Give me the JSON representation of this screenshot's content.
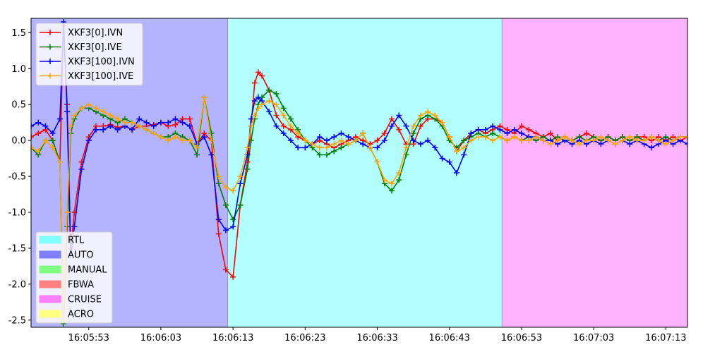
{
  "chart_data": {
    "type": "line",
    "title": "",
    "xlabel": "",
    "ylabel": "",
    "ylim": [
      -2.6,
      1.7
    ],
    "xlim": [
      "16:05:45",
      "16:07:16"
    ],
    "grid": false,
    "x_tick_labels": [
      "16:05:53",
      "16:06:03",
      "16:06:13",
      "16:06:23",
      "16:06:33",
      "16:06:43",
      "16:06:53",
      "16:07:03",
      "16:07:13"
    ],
    "x_tick_times": [
      "16:05:53",
      "16:06:03",
      "16:06:13",
      "16:06:23",
      "16:06:33",
      "16:06:43",
      "16:06:53",
      "16:07:03",
      "16:07:13"
    ],
    "y_tick_labels": [
      "1.5",
      "1.0",
      "0.5",
      "0.0",
      "-0.5",
      "-1.0",
      "-1.5",
      "-2.0",
      "-2.5"
    ],
    "y_tick_values": [
      1.5,
      1.0,
      0.5,
      0.0,
      -0.5,
      -1.0,
      -1.5,
      -2.0,
      -2.5
    ],
    "mode_regions": [
      {
        "mode": "AUTO",
        "start": "16:05:45",
        "end": "16:06:12.3",
        "color": "#b3b3ff"
      },
      {
        "mode": "RTL",
        "start": "16:06:12.3",
        "end": "16:06:50.3",
        "color": "#b3ffff"
      },
      {
        "mode": "CRUISE",
        "start": "16:06:50.3",
        "end": "16:07:16",
        "color": "#ffb3ff"
      }
    ],
    "legend_series_placement": "upper-left",
    "legend_modes_placement": "lower-left",
    "series": [
      {
        "name": "XKF3[0].IVN",
        "color": "#ff0000",
        "t": [
          45,
          46,
          47,
          48,
          49,
          49.5,
          50,
          50.5,
          51,
          52,
          53,
          54,
          55,
          56,
          57,
          58,
          59,
          60,
          61,
          62,
          63,
          64,
          65,
          66,
          67,
          68,
          69,
          70,
          71,
          72,
          73,
          74,
          75,
          75.5,
          76,
          76.5,
          77,
          78,
          79,
          80,
          81,
          82,
          83,
          84,
          85,
          86,
          87,
          88,
          89,
          90,
          91,
          92,
          93,
          94,
          95,
          96,
          97,
          98,
          99,
          100,
          101,
          102,
          103,
          104,
          105,
          106,
          107,
          108,
          109,
          110,
          111,
          112,
          113,
          114,
          115,
          116,
          117,
          118,
          119,
          120,
          121,
          122,
          123,
          124,
          125,
          126,
          127,
          128,
          129,
          130,
          131,
          132,
          133,
          134,
          135,
          136
        ],
        "y": [
          0.05,
          0.1,
          0.15,
          0.0,
          -0.3,
          1.6,
          0.5,
          -1.5,
          -1.0,
          -0.3,
          0.05,
          0.2,
          0.2,
          0.22,
          0.18,
          0.2,
          0.15,
          0.2,
          0.2,
          0.22,
          0.25,
          0.2,
          0.22,
          0.3,
          0.3,
          -0.05,
          0.1,
          0.0,
          -1.3,
          -1.8,
          -1.9,
          -0.9,
          -0.3,
          0.2,
          0.8,
          0.95,
          0.9,
          0.7,
          0.35,
          0.2,
          0.15,
          0.05,
          0.0,
          -0.05,
          0.0,
          -0.05,
          -0.1,
          -0.05,
          0.0,
          0.05,
          0.0,
          -0.05,
          0.0,
          0.1,
          0.3,
          0.15,
          -0.05,
          -0.05,
          0.2,
          0.3,
          0.3,
          0.25,
          0.05,
          -0.15,
          0.0,
          0.1,
          0.15,
          0.1,
          0.15,
          0.2,
          0.15,
          0.1,
          0.2,
          0.15,
          0.1,
          0.05,
          0.1,
          0.0,
          0.05,
          0.0,
          0.05,
          0.1,
          0.05,
          0.0,
          0.05,
          0.0,
          0.05,
          0.0,
          0.05,
          0.05,
          0.0,
          0.05,
          0.0,
          0.05,
          0.0,
          0.05
        ]
      },
      {
        "name": "XKF3[0].IVE",
        "color": "#008000",
        "t": [
          45,
          46,
          47,
          48,
          49,
          49.5,
          50,
          50.5,
          51,
          52,
          53,
          54,
          55,
          56,
          57,
          58,
          59,
          60,
          61,
          62,
          63,
          64,
          65,
          66,
          67,
          68,
          69,
          70,
          71,
          72,
          73,
          74,
          75,
          75.5,
          76,
          76.5,
          77,
          78,
          79,
          80,
          81,
          82,
          83,
          84,
          85,
          86,
          87,
          88,
          89,
          90,
          91,
          92,
          93,
          94,
          95,
          96,
          97,
          98,
          99,
          100,
          101,
          102,
          103,
          104,
          105,
          106,
          107,
          108,
          109,
          110,
          111,
          112,
          113,
          114,
          115,
          116,
          117,
          118,
          119,
          120,
          121,
          122,
          123,
          124,
          125,
          126,
          127,
          128,
          129,
          130,
          131,
          132,
          133,
          134,
          135,
          136
        ],
        "y": [
          -0.1,
          -0.2,
          0.0,
          0.0,
          -0.3,
          -2.55,
          -1.2,
          0.1,
          0.3,
          0.45,
          0.45,
          0.4,
          0.35,
          0.3,
          0.25,
          0.3,
          0.25,
          0.2,
          0.15,
          0.1,
          0.05,
          0.05,
          0.1,
          0.05,
          0.0,
          -0.2,
          0.6,
          0.1,
          -0.6,
          -0.9,
          -1.1,
          -0.9,
          -0.4,
          0.0,
          0.3,
          0.5,
          0.6,
          0.7,
          0.65,
          0.45,
          0.3,
          0.15,
          0.0,
          -0.1,
          -0.2,
          -0.2,
          -0.15,
          -0.1,
          -0.05,
          0.0,
          0.1,
          -0.1,
          -0.3,
          -0.6,
          -0.7,
          -0.55,
          -0.2,
          0.1,
          0.3,
          0.35,
          0.3,
          0.2,
          0.0,
          -0.1,
          0.0,
          0.05,
          0.1,
          0.05,
          0.1,
          0.05,
          0.0,
          0.05,
          0.0,
          0.05,
          0.0,
          0.05,
          0.0,
          0.05,
          0.0,
          0.0,
          0.05,
          0.0,
          0.05,
          0.0,
          0.05,
          0.0,
          0.05,
          0.0,
          0.05,
          0.0,
          0.05,
          0.0,
          0.05,
          0.0,
          0.05,
          0.05
        ]
      },
      {
        "name": "XKF3[100].IVN",
        "color": "#0000ff",
        "t": [
          45,
          46,
          47,
          48,
          49,
          49.5,
          50,
          50.5,
          51,
          52,
          53,
          54,
          55,
          56,
          57,
          58,
          59,
          60,
          61,
          62,
          63,
          64,
          65,
          66,
          67,
          68,
          69,
          70,
          71,
          72,
          73,
          74,
          75,
          75.5,
          76,
          76.5,
          77,
          78,
          79,
          80,
          81,
          82,
          83,
          84,
          85,
          86,
          87,
          88,
          89,
          90,
          91,
          92,
          93,
          94,
          95,
          96,
          97,
          98,
          99,
          100,
          101,
          102,
          103,
          104,
          105,
          106,
          107,
          108,
          109,
          110,
          111,
          112,
          113,
          114,
          115,
          116,
          117,
          118,
          119,
          120,
          121,
          122,
          123,
          124,
          125,
          126,
          127,
          128,
          129,
          130,
          131,
          132,
          133,
          134,
          135,
          136
        ],
        "y": [
          0.2,
          0.25,
          0.2,
          0.1,
          0.3,
          1.65,
          0.4,
          -1.6,
          -1.2,
          -0.4,
          0.0,
          0.15,
          0.15,
          0.2,
          0.15,
          0.2,
          0.15,
          0.3,
          0.25,
          0.2,
          0.25,
          0.25,
          0.3,
          0.25,
          0.2,
          -0.05,
          0.05,
          -0.2,
          -1.1,
          -1.25,
          -1.2,
          -0.6,
          -0.2,
          0.3,
          0.55,
          0.6,
          0.55,
          0.4,
          0.2,
          0.1,
          0.0,
          -0.1,
          -0.1,
          -0.05,
          0.05,
          0.0,
          0.05,
          0.1,
          0.05,
          0.0,
          -0.05,
          -0.1,
          -0.1,
          0.0,
          0.2,
          0.35,
          0.2,
          0.0,
          -0.05,
          0.0,
          -0.1,
          -0.25,
          -0.3,
          -0.45,
          -0.2,
          0.1,
          0.15,
          0.15,
          0.2,
          0.15,
          0.1,
          0.15,
          0.1,
          0.05,
          0.05,
          0.0,
          0.0,
          -0.05,
          0.0,
          -0.05,
          0.0,
          -0.05,
          0.0,
          -0.05,
          0.0,
          -0.05,
          0.0,
          -0.05,
          0.0,
          -0.05,
          -0.1,
          -0.05,
          0.0,
          -0.05,
          0.0,
          -0.05
        ]
      },
      {
        "name": "XKF3[100].IVE",
        "color": "#ffa500",
        "t": [
          45,
          46,
          47,
          48,
          49,
          49.5,
          50,
          50.5,
          51,
          52,
          53,
          54,
          55,
          56,
          57,
          58,
          59,
          60,
          61,
          62,
          63,
          64,
          65,
          66,
          67,
          68,
          69,
          70,
          71,
          72,
          73,
          74,
          75,
          75.5,
          76,
          76.5,
          77,
          78,
          79,
          80,
          81,
          82,
          83,
          84,
          85,
          86,
          87,
          88,
          89,
          90,
          91,
          92,
          93,
          94,
          95,
          96,
          97,
          98,
          99,
          100,
          101,
          102,
          103,
          104,
          105,
          106,
          107,
          108,
          109,
          110,
          111,
          112,
          113,
          114,
          115,
          116,
          117,
          118,
          119,
          120,
          121,
          122,
          123,
          124,
          125,
          126,
          127,
          128,
          129,
          130,
          131,
          132,
          133,
          134,
          135,
          136
        ],
        "y": [
          -0.1,
          -0.15,
          0.0,
          -0.1,
          -0.3,
          -2.5,
          -1.0,
          0.2,
          0.35,
          0.45,
          0.5,
          0.45,
          0.4,
          0.35,
          0.3,
          0.25,
          0.25,
          0.2,
          0.15,
          0.1,
          0.05,
          0.0,
          0.05,
          0.0,
          0.0,
          -0.1,
          0.6,
          0.0,
          -0.5,
          -0.65,
          -0.7,
          -0.5,
          -0.1,
          0.2,
          0.35,
          0.45,
          0.5,
          0.55,
          0.5,
          0.35,
          0.2,
          0.1,
          0.0,
          -0.05,
          -0.1,
          -0.1,
          -0.05,
          0.0,
          -0.05,
          0.0,
          0.1,
          -0.1,
          -0.3,
          -0.55,
          -0.6,
          -0.45,
          -0.1,
          0.2,
          0.35,
          0.4,
          0.35,
          0.25,
          0.05,
          -0.15,
          -0.1,
          0.0,
          0.05,
          0.05,
          0.0,
          0.05,
          0.0,
          0.05,
          0.0,
          0.0,
          0.05,
          0.0,
          -0.05,
          0.0,
          0.05,
          0.0,
          -0.05,
          0.0,
          0.0,
          0.05,
          0.0,
          -0.05,
          0.0,
          0.05,
          0.0,
          0.0,
          0.05,
          0.0,
          -0.05,
          0.0,
          0.05,
          0.05
        ]
      }
    ],
    "mode_legend": [
      {
        "label": "RTL",
        "color": "#80ffff"
      },
      {
        "label": "AUTO",
        "color": "#8080ff"
      },
      {
        "label": "MANUAL",
        "color": "#80ff80"
      },
      {
        "label": "FBWA",
        "color": "#ff8080"
      },
      {
        "label": "CRUISE",
        "color": "#ff80ff"
      },
      {
        "label": "ACRO",
        "color": "#ffff80"
      }
    ]
  }
}
